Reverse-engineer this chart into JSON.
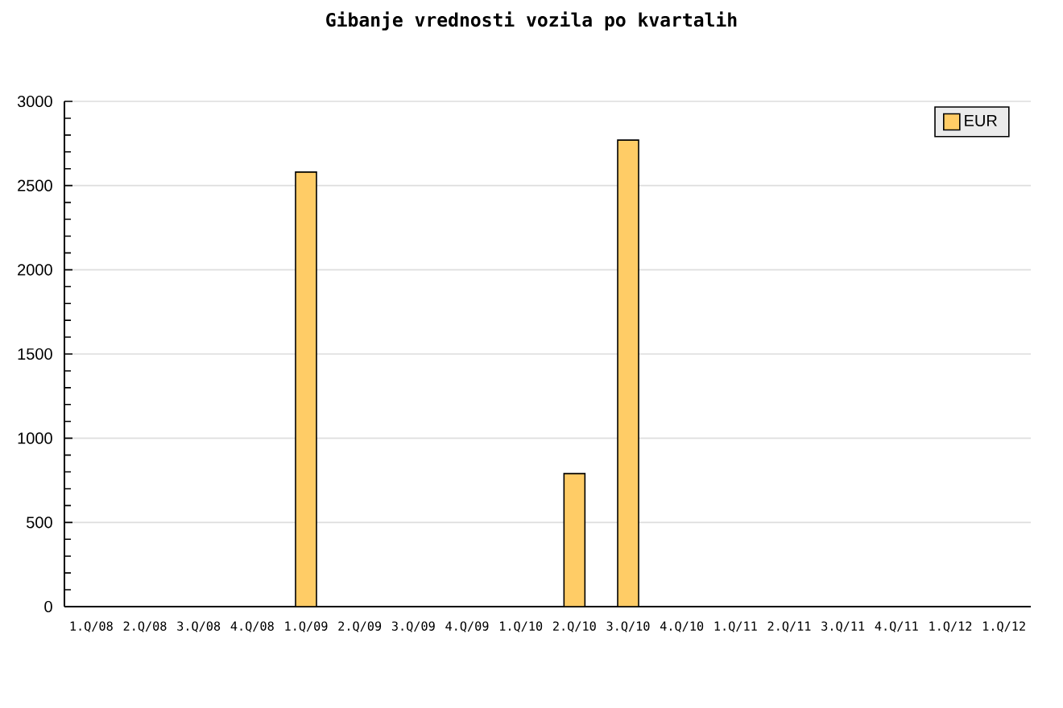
{
  "chart_data": {
    "type": "bar",
    "title": "Gibanje vrednosti vozila po kvartalih",
    "categories": [
      "1.Q/08",
      "2.Q/08",
      "3.Q/08",
      "4.Q/08",
      "1.Q/09",
      "2.Q/09",
      "3.Q/09",
      "4.Q/09",
      "1.Q/10",
      "2.Q/10",
      "3.Q/10",
      "4.Q/10",
      "1.Q/11",
      "2.Q/11",
      "3.Q/11",
      "4.Q/11",
      "1.Q/12",
      "1.Q/12"
    ],
    "series": [
      {
        "name": "EUR",
        "color": "#ffcc66",
        "values": [
          null,
          null,
          null,
          null,
          2580,
          null,
          null,
          null,
          null,
          790,
          2770,
          null,
          null,
          null,
          null,
          null,
          null,
          null
        ]
      }
    ],
    "ylim": [
      0,
      3000
    ],
    "yticks": [
      0,
      500,
      1000,
      1500,
      2000,
      2500,
      3000
    ],
    "grid": "y",
    "legend": "top right"
  }
}
